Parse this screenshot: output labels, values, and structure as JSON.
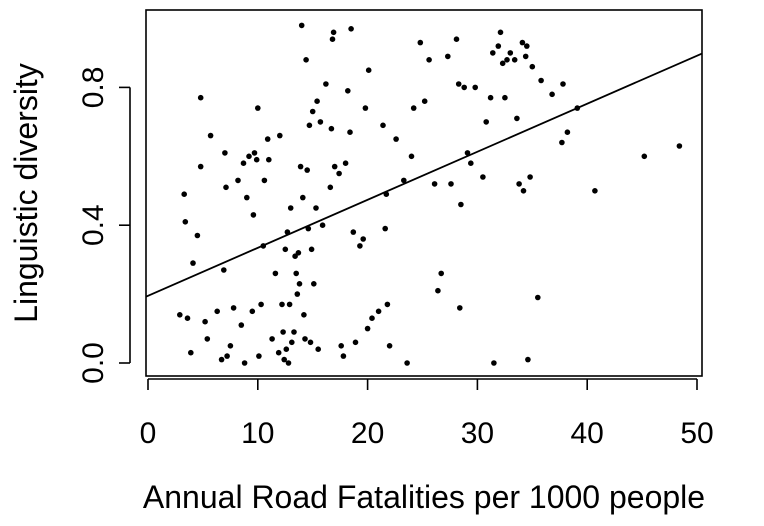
{
  "chart_data": {
    "type": "scatter",
    "title": "",
    "xlabel": "Annual Road Fatalities per 1000 people",
    "ylabel": "Linguistic diversity",
    "xlim": [
      0,
      50
    ],
    "ylim": [
      0.0,
      1.0
    ],
    "xticks": [
      0,
      10,
      20,
      30,
      40,
      50
    ],
    "xtick_labels": [
      "0",
      "10",
      "20",
      "30",
      "40",
      "50"
    ],
    "yticks": [
      0.0,
      0.4,
      0.8
    ],
    "ytick_labels": [
      "0.0",
      "0.4",
      "0.8"
    ],
    "grid": false,
    "legend": "none",
    "point_color": "#000000",
    "line_color": "#000000",
    "trendline": {
      "intercept": 0.195,
      "slope": 0.01394
    },
    "points": [
      [
        2.9,
        0.14
      ],
      [
        3.3,
        0.49
      ],
      [
        3.4,
        0.41
      ],
      [
        3.6,
        0.13
      ],
      [
        3.9,
        0.03
      ],
      [
        4.1,
        0.29
      ],
      [
        4.5,
        0.37
      ],
      [
        4.8,
        0.57
      ],
      [
        4.8,
        0.77
      ],
      [
        5.2,
        0.12
      ],
      [
        5.4,
        0.07
      ],
      [
        5.7,
        0.66
      ],
      [
        6.3,
        0.15
      ],
      [
        6.7,
        0.01
      ],
      [
        6.9,
        0.27
      ],
      [
        7.0,
        0.61
      ],
      [
        7.1,
        0.51
      ],
      [
        7.2,
        0.02
      ],
      [
        7.5,
        0.05
      ],
      [
        7.8,
        0.16
      ],
      [
        8.2,
        0.53
      ],
      [
        8.5,
        0.11
      ],
      [
        8.7,
        0.58
      ],
      [
        8.8,
        0.0
      ],
      [
        9.0,
        0.48
      ],
      [
        9.2,
        0.6
      ],
      [
        9.5,
        0.15
      ],
      [
        9.6,
        0.43
      ],
      [
        9.7,
        0.61
      ],
      [
        9.9,
        0.59
      ],
      [
        10.0,
        0.74
      ],
      [
        10.1,
        0.02
      ],
      [
        10.3,
        0.17
      ],
      [
        10.5,
        0.34
      ],
      [
        10.6,
        0.53
      ],
      [
        10.9,
        0.65
      ],
      [
        11.0,
        0.59
      ],
      [
        11.3,
        0.07
      ],
      [
        11.6,
        0.26
      ],
      [
        11.9,
        0.03
      ],
      [
        12.0,
        0.66
      ],
      [
        12.2,
        0.17
      ],
      [
        12.3,
        0.09
      ],
      [
        12.4,
        0.01
      ],
      [
        12.5,
        0.33
      ],
      [
        12.6,
        0.04
      ],
      [
        12.7,
        0.38
      ],
      [
        12.8,
        0.0
      ],
      [
        12.9,
        0.17
      ],
      [
        13.0,
        0.45
      ],
      [
        13.1,
        0.06
      ],
      [
        13.3,
        0.09
      ],
      [
        13.4,
        0.31
      ],
      [
        13.5,
        0.26
      ],
      [
        13.6,
        0.2
      ],
      [
        13.7,
        0.32
      ],
      [
        13.8,
        0.23
      ],
      [
        13.9,
        0.57
      ],
      [
        14.0,
        0.98
      ],
      [
        14.1,
        0.48
      ],
      [
        14.2,
        0.14
      ],
      [
        14.3,
        0.07
      ],
      [
        14.4,
        0.88
      ],
      [
        14.5,
        0.56
      ],
      [
        14.6,
        0.39
      ],
      [
        14.7,
        0.69
      ],
      [
        14.8,
        0.06
      ],
      [
        14.9,
        0.33
      ],
      [
        15.0,
        0.73
      ],
      [
        15.1,
        0.23
      ],
      [
        15.3,
        0.45
      ],
      [
        15.4,
        0.76
      ],
      [
        15.5,
        0.04
      ],
      [
        15.7,
        0.7
      ],
      [
        15.9,
        0.4
      ],
      [
        16.2,
        0.81
      ],
      [
        16.6,
        0.51
      ],
      [
        16.7,
        0.68
      ],
      [
        16.8,
        0.94
      ],
      [
        16.9,
        0.96
      ],
      [
        17.0,
        0.57
      ],
      [
        17.4,
        0.55
      ],
      [
        17.6,
        0.05
      ],
      [
        17.8,
        0.02
      ],
      [
        18.0,
        0.58
      ],
      [
        18.2,
        0.79
      ],
      [
        18.4,
        0.67
      ],
      [
        18.5,
        0.97
      ],
      [
        18.7,
        0.38
      ],
      [
        18.9,
        0.06
      ],
      [
        19.3,
        0.34
      ],
      [
        19.6,
        0.36
      ],
      [
        19.8,
        0.74
      ],
      [
        20.0,
        0.1
      ],
      [
        20.1,
        0.85
      ],
      [
        20.4,
        0.13
      ],
      [
        21.0,
        0.15
      ],
      [
        21.4,
        0.69
      ],
      [
        21.6,
        0.39
      ],
      [
        21.7,
        0.49
      ],
      [
        21.8,
        0.17
      ],
      [
        22.0,
        0.05
      ],
      [
        22.6,
        0.65
      ],
      [
        23.3,
        0.53
      ],
      [
        23.6,
        0.0
      ],
      [
        24.0,
        0.6
      ],
      [
        24.2,
        0.74
      ],
      [
        24.8,
        0.93
      ],
      [
        25.2,
        0.76
      ],
      [
        25.6,
        0.88
      ],
      [
        26.1,
        0.52
      ],
      [
        26.4,
        0.21
      ],
      [
        26.7,
        0.26
      ],
      [
        27.3,
        0.89
      ],
      [
        27.6,
        0.52
      ],
      [
        28.1,
        0.94
      ],
      [
        28.3,
        0.81
      ],
      [
        28.4,
        0.16
      ],
      [
        28.5,
        0.46
      ],
      [
        28.8,
        0.8
      ],
      [
        29.1,
        0.61
      ],
      [
        29.4,
        0.58
      ],
      [
        29.8,
        0.8
      ],
      [
        30.5,
        0.54
      ],
      [
        30.8,
        0.7
      ],
      [
        31.2,
        0.77
      ],
      [
        31.4,
        0.9
      ],
      [
        31.5,
        0.0
      ],
      [
        31.9,
        0.92
      ],
      [
        32.1,
        0.96
      ],
      [
        32.3,
        0.87
      ],
      [
        32.5,
        0.77
      ],
      [
        32.7,
        0.88
      ],
      [
        33.0,
        0.9
      ],
      [
        33.4,
        0.88
      ],
      [
        33.6,
        0.71
      ],
      [
        33.8,
        0.52
      ],
      [
        34.1,
        0.93
      ],
      [
        34.2,
        0.5
      ],
      [
        34.4,
        0.89
      ],
      [
        34.5,
        0.92
      ],
      [
        34.6,
        0.01
      ],
      [
        34.8,
        0.54
      ],
      [
        35.0,
        0.86
      ],
      [
        35.5,
        0.19
      ],
      [
        35.8,
        0.82
      ],
      [
        36.8,
        0.78
      ],
      [
        37.7,
        0.64
      ],
      [
        37.8,
        0.81
      ],
      [
        38.2,
        0.67
      ],
      [
        39.1,
        0.74
      ],
      [
        40.7,
        0.5
      ],
      [
        45.2,
        0.6
      ],
      [
        48.4,
        0.63
      ]
    ]
  }
}
